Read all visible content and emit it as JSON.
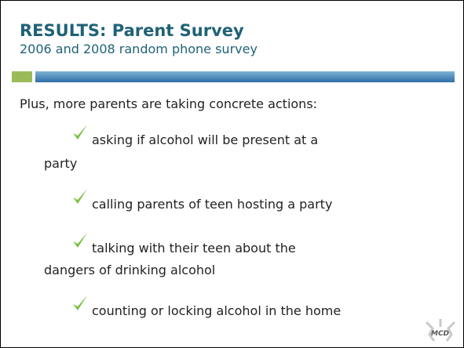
{
  "header": {
    "title": "RESULTS: Parent Survey",
    "subtitle": "2006 and 2008 random phone survey"
  },
  "body": {
    "intro": "Plus, more parents are taking concrete actions:",
    "items": [
      [
        "asking if alcohol will be present at a",
        "party"
      ],
      [
        "calling parents of teen hosting a party"
      ],
      [
        "talking with their teen about the",
        "dangers of drinking alcohol"
      ],
      [
        "counting or locking alcohol in the home"
      ]
    ]
  },
  "logo": "MCD"
}
